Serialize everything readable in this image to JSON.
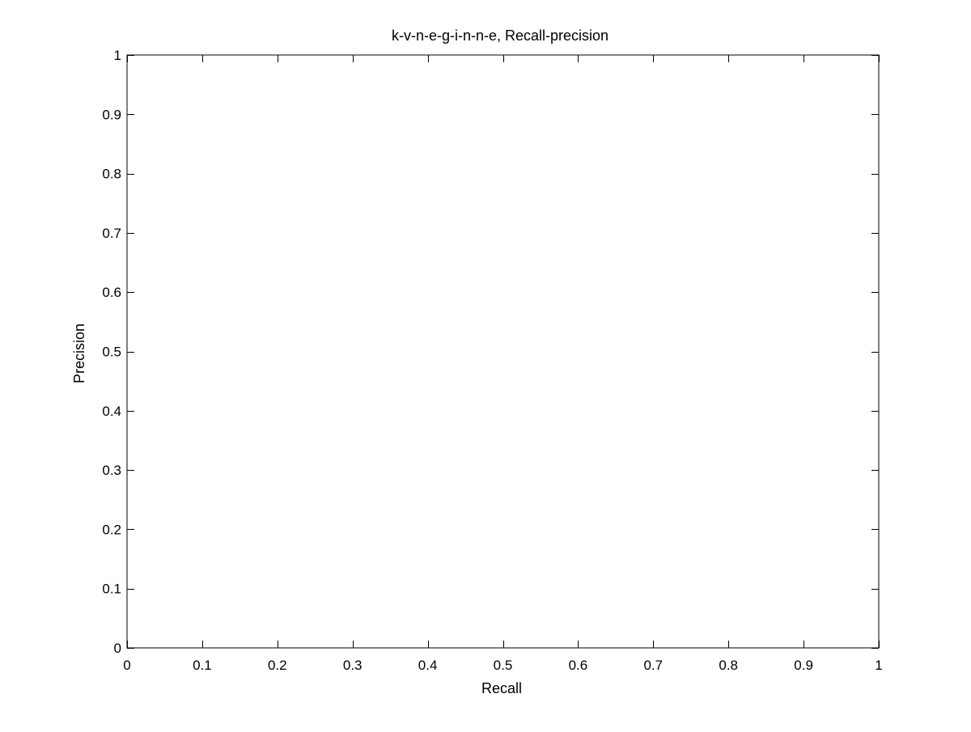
{
  "chart_data": {
    "type": "line",
    "title": "k-v-n-e-g-i-n-n-e, Recall-precision",
    "xlabel": "Recall",
    "ylabel": "Precision",
    "xlim": [
      0,
      1
    ],
    "ylim": [
      0,
      1
    ],
    "xticks": [
      "0",
      "0.1",
      "0.2",
      "0.3",
      "0.4",
      "0.5",
      "0.6",
      "0.7",
      "0.8",
      "0.9",
      "1"
    ],
    "yticks": [
      "0",
      "0.1",
      "0.2",
      "0.3",
      "0.4",
      "0.5",
      "0.6",
      "0.7",
      "0.8",
      "0.9",
      "1"
    ],
    "series": [],
    "grid": false,
    "colors": {
      "axis": "#000000",
      "background": "#ffffff"
    }
  }
}
